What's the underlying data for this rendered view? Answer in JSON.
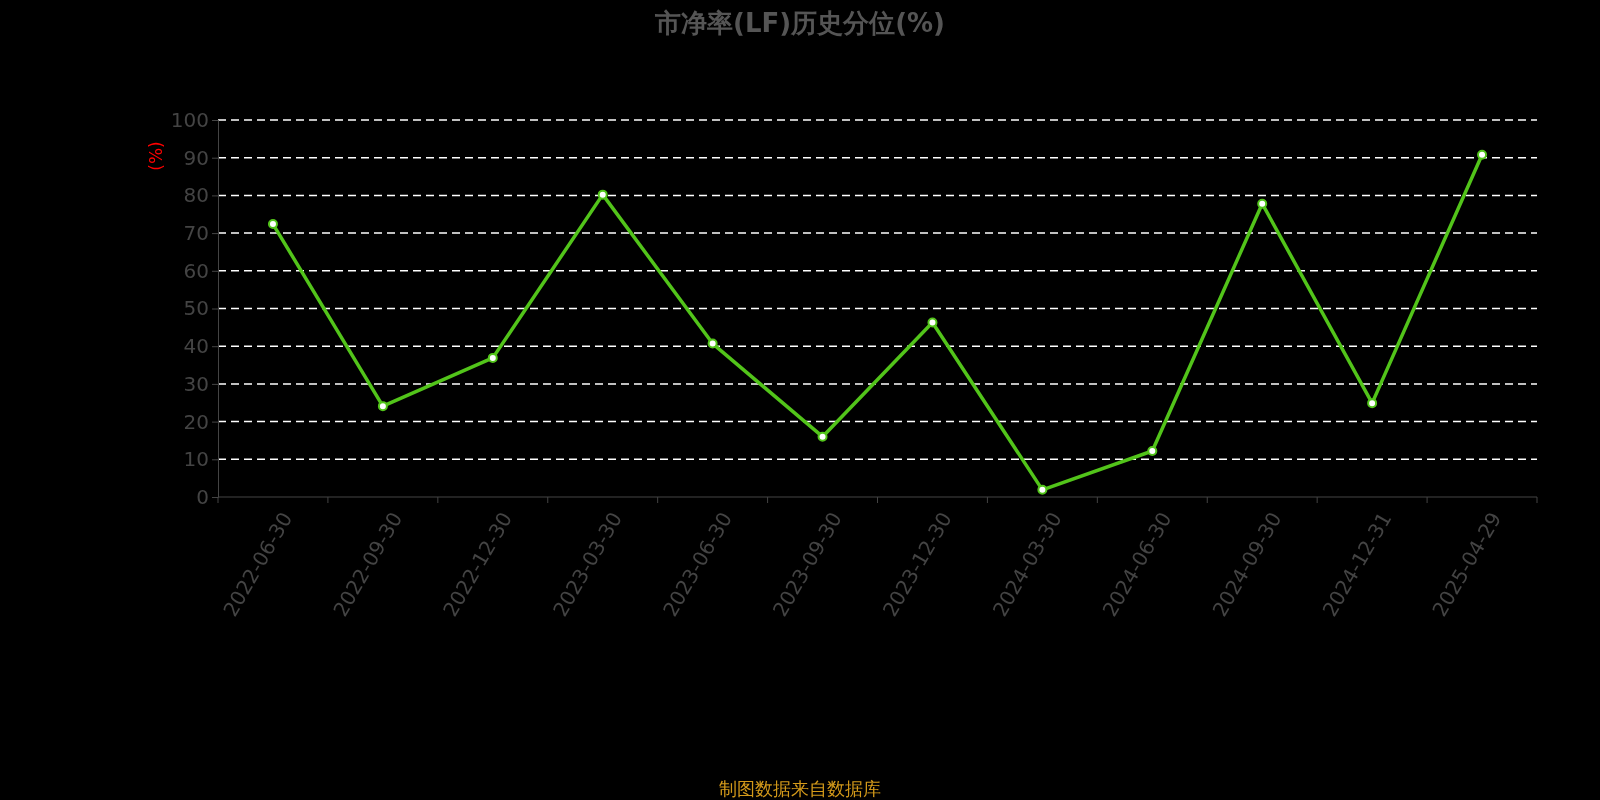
{
  "chart_data": {
    "type": "line",
    "title": "市净率(LF)历史分位(%)",
    "ylabel": "(%)",
    "categories": [
      "2022-06-30",
      "2022-09-30",
      "2022-12-30",
      "2023-03-30",
      "2023-06-30",
      "2023-09-30",
      "2023-12-30",
      "2024-03-30",
      "2024-06-30",
      "2024-09-30",
      "2024-12-31",
      "2025-04-29"
    ],
    "series": [
      {
        "color": "#52c41a",
        "values": [
          72.4,
          24.1,
          36.9,
          80.2,
          40.7,
          16.0,
          46.3,
          1.9,
          12.2,
          77.8,
          24.9,
          90.8
        ]
      }
    ],
    "ylim": [
      0,
      100
    ],
    "yticks": [
      0,
      10,
      20,
      30,
      40,
      50,
      60,
      70,
      80,
      90,
      100
    ],
    "grid": "y",
    "marker": "circle",
    "line_style": "solid",
    "annotations": [
      "制图数据来自数据库"
    ]
  }
}
